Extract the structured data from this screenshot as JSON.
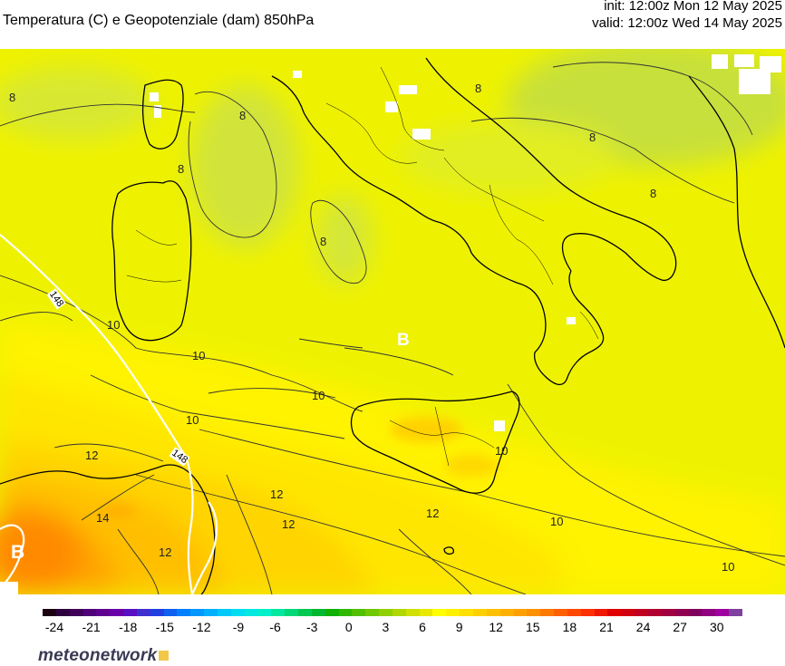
{
  "header": {
    "title": "Temperatura (C) e Geopotenziale (dam) 850hPa",
    "init": "init: 12:00z Mon 12 May 2025",
    "valid": "valid: 12:00z Wed 14 May 2025"
  },
  "map": {
    "region": "Southern Italy, Sardinia, Sicily, Tyrrhenian Sea",
    "pressure_center_labels": [
      "B",
      "B"
    ],
    "geopotential_labels": [
      "148",
      "148"
    ],
    "isotherm_labels": [
      "8",
      "8",
      "8",
      "8",
      "8",
      "8",
      "8",
      "10",
      "10",
      "10",
      "10",
      "10",
      "10",
      "10",
      "12",
      "12",
      "12",
      "12",
      "12",
      "14"
    ],
    "colors": {
      "cool_green": "#cbe635",
      "yellow_green": "#e6f000",
      "yellow": "#fff200",
      "yellow_orange": "#ffd500",
      "orange": "#ffb000",
      "deep_orange": "#ff8c00"
    }
  },
  "colorbar": {
    "ticks": [
      "-24",
      "-21",
      "-18",
      "-15",
      "-12",
      "-9",
      "-6",
      "-3",
      "0",
      "3",
      "6",
      "9",
      "12",
      "15",
      "18",
      "21",
      "24",
      "27",
      "30"
    ],
    "colors": [
      "#1a0010",
      "#2e0040",
      "#40005a",
      "#500078",
      "#600090",
      "#6a00a8",
      "#5a10c0",
      "#4030d0",
      "#2040e0",
      "#1060f0",
      "#0080ff",
      "#0098ff",
      "#00b0ff",
      "#00c8f8",
      "#00dcf0",
      "#00e8e0",
      "#00f0c8",
      "#00e8a0",
      "#00d878",
      "#00c850",
      "#00b830",
      "#10b000",
      "#30b800",
      "#50c000",
      "#70c800",
      "#90d000",
      "#b0d800",
      "#d0e000",
      "#e8e800",
      "#ffff00",
      "#fff000",
      "#ffe000",
      "#ffd000",
      "#ffc000",
      "#ffb000",
      "#ffa000",
      "#ff9000",
      "#ff7800",
      "#ff6000",
      "#ff4800",
      "#ff3000",
      "#f01800",
      "#e00000",
      "#d00010",
      "#c00020",
      "#b00030",
      "#a00040",
      "#900050",
      "#800060",
      "#900080",
      "#a000a0",
      "#8040a0"
    ]
  },
  "logo": {
    "text": "meteonetwork"
  }
}
